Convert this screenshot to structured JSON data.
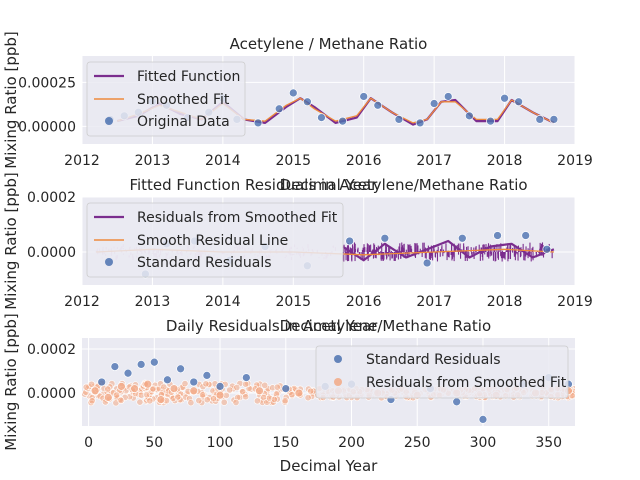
{
  "charts": [
    {
      "title": "Acetylene / Methane Ratio",
      "ylabel": "Mixing Ratio [ppb]",
      "xticks": [
        "2012",
        "2013",
        "2014",
        "2015",
        "2016",
        "2017",
        "2018",
        "2019"
      ],
      "yticks": [
        "0.00000",
        "0.00025"
      ],
      "legend": [
        "Fitted Function",
        "Smoothed Fit",
        "Original Data"
      ]
    },
    {
      "title": "Fitted Function Residuals in Acetylene/Methane Ratio",
      "title_overlap": "Decimal Year",
      "ylabel": "Mixing Ratio [ppb]",
      "xticks": [
        "2012",
        "2013",
        "2014",
        "2015",
        "2016",
        "2017",
        "2018",
        "2019"
      ],
      "yticks": [
        "0.0000",
        "0.0002"
      ],
      "legend": [
        "Residuals from Smoothed Fit",
        "Smooth Residual Line",
        "Standard Residuals"
      ]
    },
    {
      "title": "Daily Residuals in Acetylene/Methane Ratio",
      "title_overlap": "Decimal Year",
      "ylabel": "Mixing Ratio [ppb]",
      "xlabel": "Decimal Year",
      "xticks": [
        "0",
        "50",
        "100",
        "150",
        "200",
        "250",
        "300",
        "350"
      ],
      "yticks": [
        "0.0000",
        "0.0002"
      ],
      "legend": [
        "Standard Residuals",
        "Residuals from Smoothed Fit"
      ]
    }
  ],
  "colors": {
    "background": "#eaeaf2",
    "grid": "#ffffff",
    "fitted": "#7b2d8e",
    "smoothed": "#ee8a3c",
    "points": "#4c72b0",
    "smoothed_points": "#f2a986",
    "residual_band": "#dcb8d8"
  },
  "chart_data": [
    {
      "type": "scatter",
      "title": "Acetylene / Methane Ratio",
      "ylabel": "Mixing Ratio [ppb]",
      "xlim": [
        2012,
        2019
      ],
      "ylim": [
        -0.0001,
        0.0004
      ],
      "series": [
        {
          "name": "Fitted Function",
          "type": "line",
          "x": [
            2012.5,
            2012.8,
            2013.1,
            2013.4,
            2013.7,
            2014.0,
            2014.3,
            2014.6,
            2014.9,
            2015.1,
            2015.3,
            2015.6,
            2015.9,
            2016.1,
            2016.4,
            2016.7,
            2016.9,
            2017.1,
            2017.3,
            2017.6,
            2017.9,
            2018.1,
            2018.4,
            2018.7
          ],
          "y": [
            3e-05,
            6e-05,
            0.00013,
            7e-05,
            4e-05,
            0.00014,
            4e-05,
            2e-05,
            0.00011,
            0.00016,
            0.00011,
            2e-05,
            5e-05,
            0.00016,
            8e-05,
            1e-05,
            4e-05,
            0.00014,
            0.00015,
            3e-05,
            3e-05,
            0.00015,
            8e-05,
            2e-05
          ]
        },
        {
          "name": "Smoothed Fit",
          "type": "line",
          "x": [
            2012.5,
            2012.8,
            2013.1,
            2013.4,
            2013.7,
            2014.0,
            2014.3,
            2014.6,
            2014.9,
            2015.1,
            2015.3,
            2015.6,
            2015.9,
            2016.1,
            2016.4,
            2016.7,
            2016.9,
            2017.1,
            2017.3,
            2017.6,
            2017.9,
            2018.1,
            2018.4,
            2018.7
          ],
          "y": [
            3e-05,
            7e-05,
            0.00012,
            8e-05,
            4e-05,
            0.00013,
            4e-05,
            3e-05,
            0.00012,
            0.00016,
            0.0001,
            3e-05,
            6e-05,
            0.00016,
            8e-05,
            2e-05,
            4e-05,
            0.00014,
            0.00014,
            4e-05,
            4e-05,
            0.00015,
            8e-05,
            2e-05
          ]
        },
        {
          "name": "Original Data",
          "type": "scatter",
          "x": [
            2012.4,
            2012.6,
            2012.8,
            2013.0,
            2013.2,
            2013.5,
            2013.8,
            2014.0,
            2014.2,
            2014.5,
            2014.8,
            2015.0,
            2015.2,
            2015.4,
            2015.7,
            2016.0,
            2016.2,
            2016.5,
            2016.8,
            2017.0,
            2017.2,
            2017.5,
            2017.8,
            2018.0,
            2018.2,
            2018.5,
            2018.7
          ],
          "y": [
            4e-05,
            6e-05,
            8e-05,
            0.00014,
            0.00012,
            5e-05,
            8e-05,
            0.00016,
            4e-05,
            2e-05,
            0.0001,
            0.00019,
            0.00014,
            5e-05,
            3e-05,
            0.00017,
            0.00012,
            4e-05,
            2e-05,
            0.00013,
            0.00017,
            6e-05,
            3e-05,
            0.00016,
            0.00014,
            4e-05,
            4e-05
          ]
        }
      ]
    },
    {
      "type": "scatter",
      "title": "Fitted Function Residuals in Acetylene/Methane Ratio",
      "ylabel": "Mixing Ratio [ppb]",
      "xlim": [
        2012,
        2019
      ],
      "ylim": [
        -0.00012,
        0.0002
      ],
      "series": [
        {
          "name": "Residuals from Smoothed Fit",
          "type": "line",
          "x": [
            2015.7,
            2016.0,
            2016.3,
            2016.6,
            2016.9,
            2017.2,
            2017.5,
            2017.8,
            2018.1,
            2018.4,
            2018.7
          ],
          "y": [
            2e-05,
            -3e-05,
            3e-05,
            -2e-05,
            1e-05,
            4e-05,
            -2e-05,
            2e-05,
            3e-05,
            -2e-05,
            1e-05
          ]
        },
        {
          "name": "Smooth Residual Line",
          "type": "line",
          "x": [
            2012.2,
            2013.0,
            2014.0,
            2015.0,
            2016.0,
            2017.0,
            2018.0,
            2018.7
          ],
          "y": [
            0.0,
            1e-05,
            0.0,
            0.0,
            -1e-05,
            0.0,
            1e-05,
            0.0
          ]
        },
        {
          "name": "Standard Residuals",
          "type": "scatter",
          "x": [
            2012.9,
            2013.2,
            2013.6,
            2014.1,
            2014.6,
            2015.2,
            2015.8,
            2016.3,
            2016.9,
            2017.4,
            2017.9,
            2018.3,
            2018.6
          ],
          "y": [
            -8e-05,
            3e-05,
            4e-05,
            -3e-05,
            2e-05,
            -5e-05,
            4e-05,
            5e-05,
            -4e-05,
            5e-05,
            6e-05,
            6e-05,
            1e-05
          ]
        }
      ]
    },
    {
      "type": "scatter",
      "title": "Daily Residuals in Acetylene/Methane Ratio",
      "xlabel": "Decimal Year",
      "ylabel": "Mixing Ratio [ppb]",
      "xlim": [
        -5,
        370
      ],
      "ylim": [
        -0.00015,
        0.00025
      ],
      "series": [
        {
          "name": "Standard Residuals",
          "type": "scatter",
          "x": [
            10,
            20,
            30,
            40,
            50,
            60,
            70,
            80,
            90,
            100,
            120,
            150,
            180,
            200,
            230,
            260,
            280,
            300,
            330,
            350,
            365
          ],
          "y": [
            5e-05,
            0.00012,
            9e-05,
            0.00013,
            0.00014,
            6e-05,
            0.00011,
            5e-05,
            8e-05,
            3e-05,
            7e-05,
            2e-05,
            3e-05,
            4e-05,
            -3e-05,
            2e-05,
            -4e-05,
            -0.00012,
            4e-05,
            7e-05,
            4e-05
          ]
        },
        {
          "name": "Residuals from Smoothed Fit",
          "type": "scatter",
          "x": [
            5,
            15,
            25,
            35,
            45,
            55,
            65,
            80,
            100,
            130,
            160,
            190,
            220,
            250,
            280,
            310,
            340,
            365
          ],
          "y": [
            1e-05,
            -2e-05,
            3e-05,
            2e-05,
            4e-05,
            -3e-05,
            2e-05,
            1e-05,
            -1e-05,
            1e-05,
            0.0,
            1e-05,
            0.0,
            -1e-05,
            0.0,
            -1e-05,
            0.0,
            1e-05
          ]
        }
      ]
    }
  ]
}
